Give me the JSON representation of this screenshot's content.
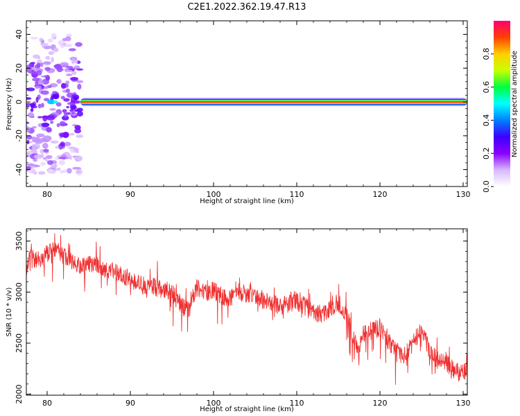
{
  "chart_data": [
    {
      "type": "heatmap",
      "title": "C2E1.2022.362.19.47.R13",
      "xlabel": "Height of straight line (km)",
      "ylabel": "Frequency (Hz)",
      "xlim": [
        77.5,
        130.5
      ],
      "ylim": [
        -50,
        48
      ],
      "xticks": [
        80,
        90,
        100,
        110,
        120,
        130
      ],
      "yticks": [
        -40,
        -20,
        0,
        20,
        40
      ],
      "description_values": {
        "carrier_frequency_hz": 0,
        "carrier_start_km": 84,
        "noise_region_km": [
          77.5,
          84.5
        ],
        "noise_frequency_range_hz": [
          -42,
          40
        ]
      },
      "colorbar": {
        "label": "Normalized spectral amplitude",
        "range": [
          0,
          1
        ],
        "ticks": [
          0.0,
          0.2,
          0.4,
          0.6,
          0.8
        ],
        "colormap": [
          "#ffffff",
          "#d8b8ff",
          "#8a00ff",
          "#3c00ff",
          "#0080ff",
          "#00ffff",
          "#00ff40",
          "#c8ff00",
          "#ffd000",
          "#ff4000",
          "#ff0070"
        ]
      }
    },
    {
      "type": "line",
      "xlabel": "Height of straight line (km)",
      "ylabel": "SNR (10 * v/v)",
      "xlim": [
        77.5,
        130.5
      ],
      "ylim": [
        1990,
        3620
      ],
      "xticks": [
        80,
        90,
        100,
        110,
        120,
        130
      ],
      "yticks": [
        2000,
        2500,
        3000,
        3500
      ],
      "color": "#f03030",
      "x": [
        77.5,
        78,
        79,
        80,
        81,
        82,
        83,
        84,
        85,
        86,
        87,
        88,
        89,
        90,
        91,
        92,
        93,
        94,
        95,
        96,
        97,
        98,
        99,
        100,
        101,
        102,
        103,
        104,
        105,
        106,
        107,
        108,
        109,
        110,
        111,
        112,
        113,
        114,
        115,
        116,
        117,
        117.5,
        118,
        119,
        120,
        121,
        122,
        122.5,
        123,
        124,
        125,
        126,
        127,
        128,
        129,
        130,
        130.5
      ],
      "y": [
        3250,
        3330,
        3300,
        3380,
        3420,
        3360,
        3300,
        3250,
        3280,
        3280,
        3220,
        3200,
        3170,
        3120,
        3080,
        3050,
        3050,
        3000,
        3000,
        2880,
        2820,
        3050,
        3000,
        3010,
        2960,
        2950,
        3000,
        2980,
        2950,
        2920,
        2900,
        2860,
        2880,
        2900,
        2860,
        2800,
        2780,
        2840,
        2900,
        2780,
        2500,
        2430,
        2580,
        2620,
        2650,
        2520,
        2400,
        2380,
        2380,
        2500,
        2640,
        2420,
        2330,
        2300,
        2220,
        2200,
        2230
      ]
    }
  ]
}
